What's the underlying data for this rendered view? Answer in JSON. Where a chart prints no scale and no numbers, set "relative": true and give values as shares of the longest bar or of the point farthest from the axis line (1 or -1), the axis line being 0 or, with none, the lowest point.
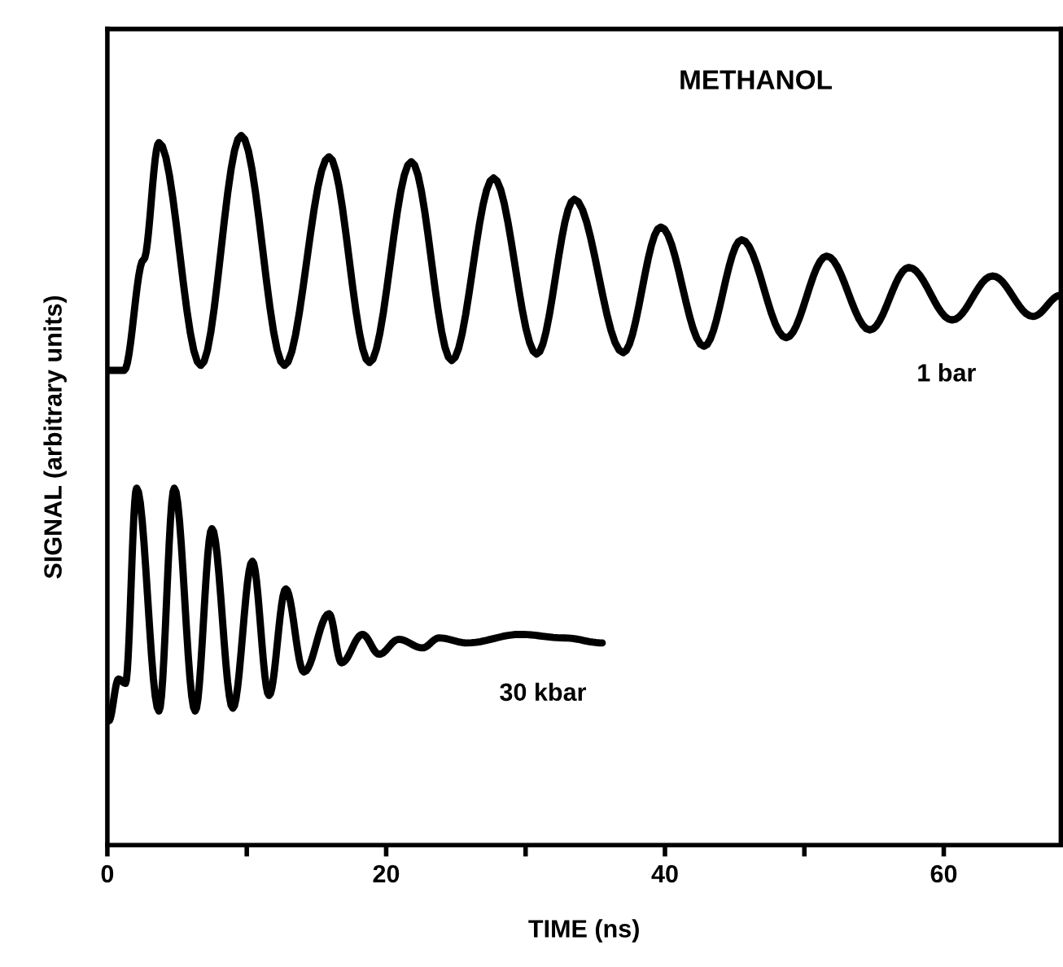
{
  "chart_data": {
    "type": "line",
    "title": "METHANOL",
    "xlabel": "TIME (ns)",
    "ylabel": "SIGNAL (arbitrary units)",
    "relative": true,
    "xlim": [
      0,
      68.4
    ],
    "xticks": [
      0,
      {
        "value": 10,
        "label": null
      },
      20,
      {
        "value": 30,
        "label": null
      },
      40,
      {
        "value": 50,
        "label": null
      },
      60
    ],
    "grid": false,
    "legend": false,
    "marker": "none",
    "line_style": "solid",
    "series": [
      {
        "name": "1 bar",
        "color": "#000000",
        "x": [
          0.2,
          1.2,
          2.6,
          3.7,
          6.7,
          9.6,
          12.7,
          15.9,
          18.8,
          21.8,
          24.7,
          27.7,
          30.8,
          33.5,
          37.0,
          39.7,
          42.8,
          45.5,
          48.7,
          51.6,
          54.7,
          57.5,
          60.6,
          63.5,
          66.4,
          68.4
        ],
        "values": [
          0.669,
          0.669,
          0.825,
          0.99,
          0.676,
          1.0,
          0.676,
          0.97,
          0.68,
          0.963,
          0.683,
          0.94,
          0.692,
          0.91,
          0.694,
          0.871,
          0.703,
          0.853,
          0.715,
          0.83,
          0.726,
          0.814,
          0.74,
          0.802,
          0.745,
          0.775
        ]
      },
      {
        "name": "30 kbar",
        "color": "#000000",
        "x": [
          0.1,
          0.8,
          1.3,
          2.1,
          3.7,
          4.8,
          6.3,
          7.5,
          9.0,
          10.4,
          11.6,
          12.8,
          14.1,
          15.9,
          16.8,
          18.3,
          19.5,
          20.9,
          22.6,
          23.8,
          25.8,
          29.6,
          32.8,
          35.5
        ],
        "values": [
          0.175,
          0.234,
          0.228,
          0.503,
          0.189,
          0.503,
          0.189,
          0.446,
          0.193,
          0.4,
          0.211,
          0.361,
          0.244,
          0.326,
          0.257,
          0.297,
          0.269,
          0.29,
          0.278,
          0.292,
          0.285,
          0.297,
          0.292,
          0.285
        ]
      }
    ]
  }
}
